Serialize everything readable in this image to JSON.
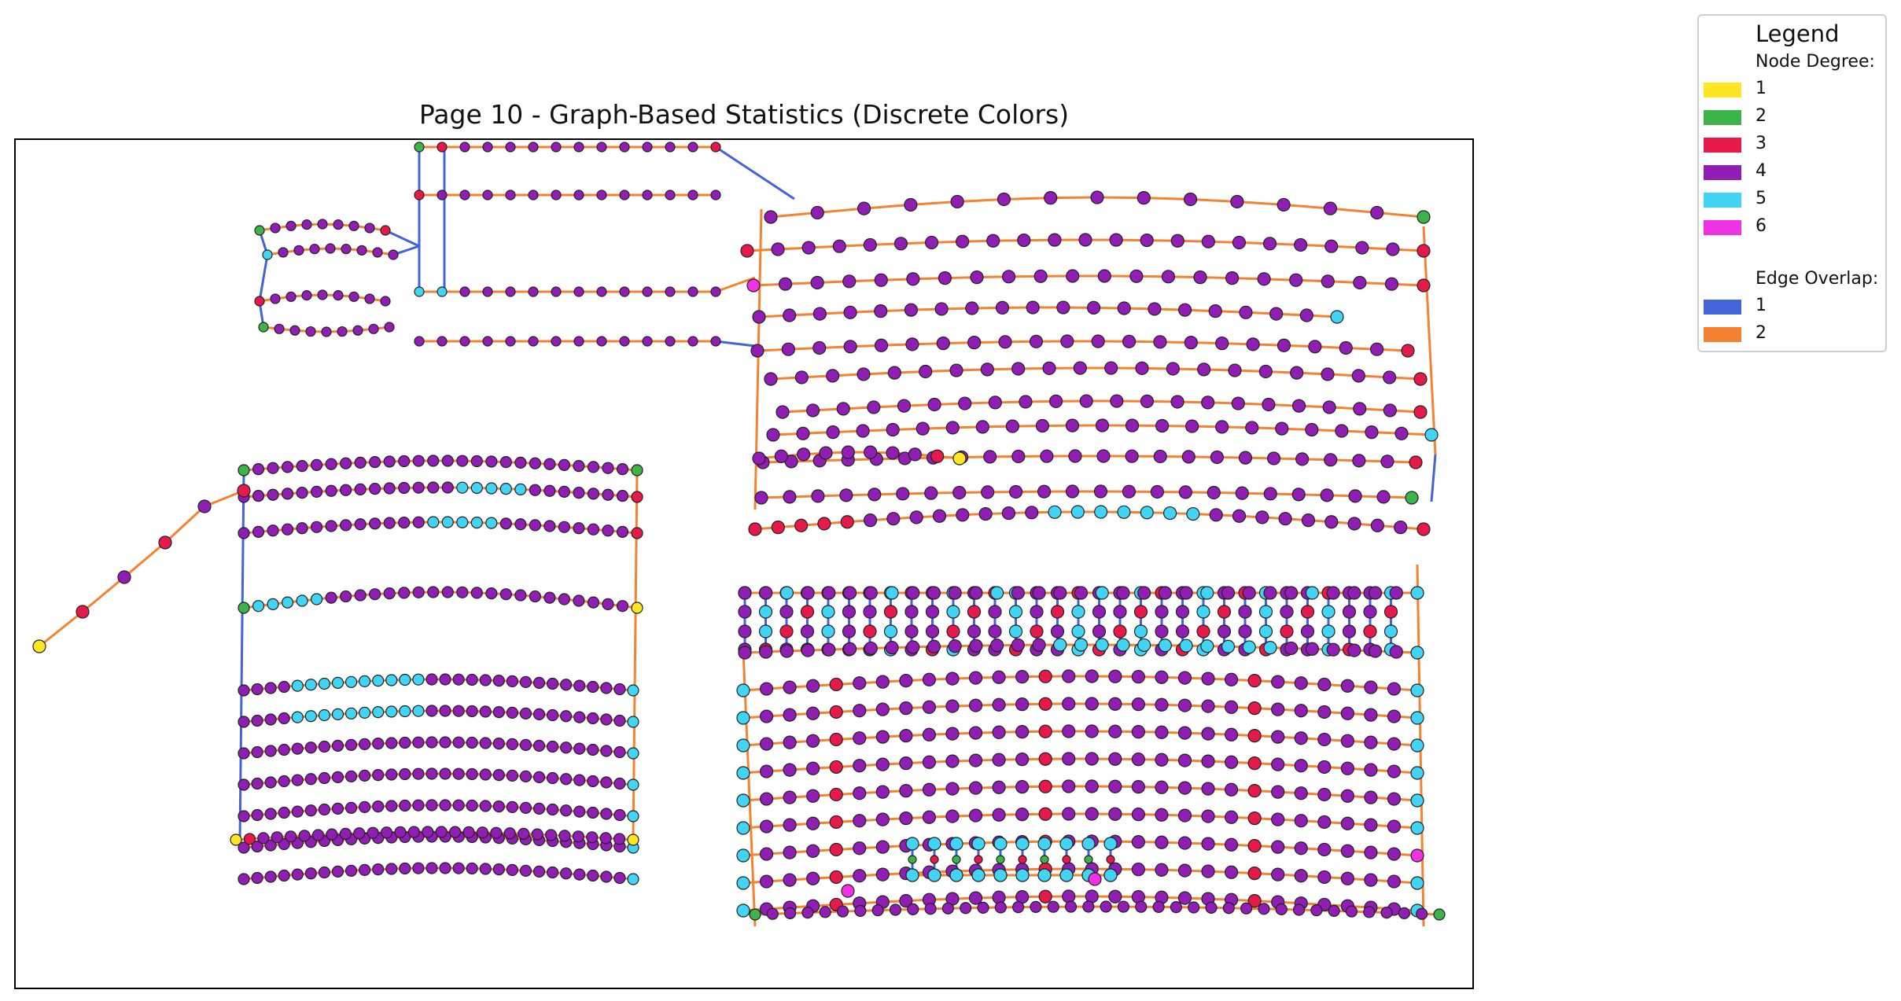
{
  "title": "Page 10 - Graph-Based Statistics (Discrete Colors)",
  "legend": {
    "title": "Legend",
    "degree_heading": "Node Degree:",
    "degree_items": [
      {
        "label": "1",
        "color": "#fde725"
      },
      {
        "label": "2",
        "color": "#3cb44b"
      },
      {
        "label": "3",
        "color": "#e6194b"
      },
      {
        "label": "4",
        "color": "#911eb4"
      },
      {
        "label": "5",
        "color": "#42d4f4"
      },
      {
        "label": "6",
        "color": "#f032e6"
      }
    ],
    "overlap_heading": "Edge Overlap:",
    "overlap_items": [
      {
        "label": "1",
        "color": "#4363d8"
      },
      {
        "label": "2",
        "color": "#f58231"
      }
    ]
  },
  "colors": {
    "degree": {
      "1": "#fde725",
      "2": "#3cb44b",
      "3": "#e6194b",
      "4": "#911eb4",
      "5": "#42d4f4",
      "6": "#f032e6"
    },
    "overlap": {
      "1": "#4363d8",
      "2": "#f58231"
    }
  }
}
